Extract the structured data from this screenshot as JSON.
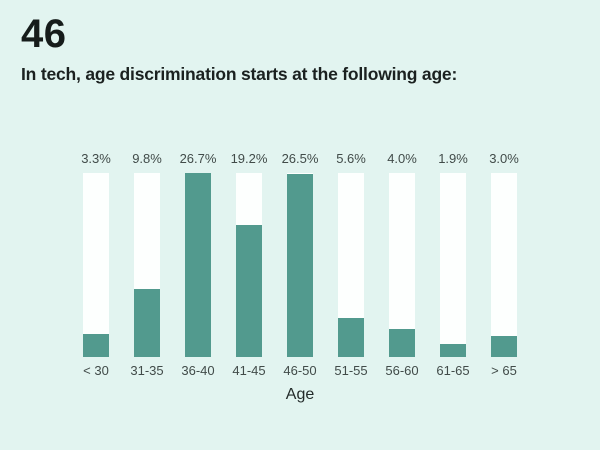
{
  "header": {
    "number": "46",
    "title": "In tech, age discrimination starts at the following age:"
  },
  "chart_data": {
    "type": "bar",
    "title": "In tech, age discrimination starts at the following age:",
    "categories": [
      "< 30",
      "31-35",
      "36-40",
      "41-45",
      "46-50",
      "51-55",
      "56-60",
      "61-65",
      "> 65"
    ],
    "values": [
      3.3,
      9.8,
      26.7,
      19.2,
      26.5,
      5.6,
      4.0,
      1.9,
      3.0
    ],
    "value_labels": [
      "3.3%",
      "9.8%",
      "26.7%",
      "19.2%",
      "26.5%",
      "5.6%",
      "4.0%",
      "1.9%",
      "3.0%"
    ],
    "xlabel": "Age",
    "ylabel": "",
    "ylim": [
      0,
      26.7
    ],
    "grid": false,
    "legend": false,
    "colors": {
      "bar_fill": "#529a8e",
      "bar_track": "#fdfffe",
      "background": "#e2f4f0",
      "label_text": "#414b49",
      "title_text": "#1b2120"
    }
  }
}
